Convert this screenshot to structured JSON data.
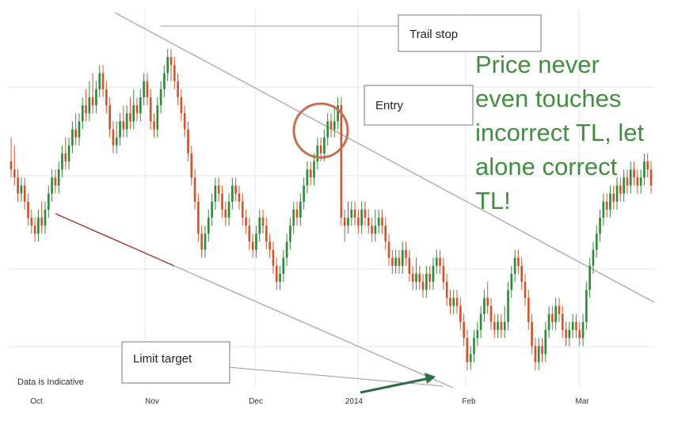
{
  "chart_data": {
    "type": "candlestick",
    "x_ticks": [
      "Oct",
      "Nov",
      "Dec",
      "2014",
      "Feb",
      "Mar"
    ],
    "footnote": "Data is Indicative",
    "grid": true,
    "colors": {
      "up": "#2e8b3a",
      "down": "#d2542c",
      "trendline": "#b0b0b0",
      "limit_line": "#a03a2a",
      "arrow": "#2f6b45",
      "circle": "#c2704e",
      "comment": "#3f8f3f"
    },
    "annotations": {
      "trail_stop": "Trail stop",
      "entry": "Entry",
      "limit_target": "Limit target",
      "comment_lines": [
        "Price never",
        "even touches",
        "incorrect TL, let",
        "alone correct",
        "TL!"
      ]
    },
    "candles": [
      [
        20,
        19,
        23,
        18
      ],
      [
        19,
        18,
        22,
        17
      ],
      [
        18,
        16,
        19,
        15
      ],
      [
        16,
        17,
        18,
        15
      ],
      [
        17,
        15,
        18,
        14
      ],
      [
        15,
        13,
        16,
        12
      ],
      [
        13,
        12,
        14,
        11
      ],
      [
        12,
        11,
        13,
        10
      ],
      [
        11,
        13,
        14,
        10
      ],
      [
        13,
        12,
        15,
        11
      ],
      [
        12,
        14,
        15,
        11
      ],
      [
        14,
        16,
        17,
        13
      ],
      [
        16,
        18,
        19,
        15
      ],
      [
        18,
        17,
        19,
        16
      ],
      [
        17,
        19,
        20,
        16
      ],
      [
        19,
        21,
        22,
        18
      ],
      [
        21,
        20,
        23,
        19
      ],
      [
        20,
        22,
        23,
        19
      ],
      [
        22,
        24,
        25,
        21
      ],
      [
        24,
        23,
        26,
        22
      ],
      [
        23,
        25,
        26,
        22
      ],
      [
        25,
        27,
        28,
        24
      ],
      [
        27,
        26,
        29,
        25
      ],
      [
        26,
        28,
        30,
        25
      ],
      [
        28,
        27,
        31,
        26
      ],
      [
        27,
        29,
        30,
        26
      ],
      [
        29,
        31,
        32,
        28
      ],
      [
        31,
        29,
        32,
        28
      ],
      [
        29,
        27,
        30,
        26
      ],
      [
        27,
        24,
        28,
        23
      ],
      [
        24,
        22,
        25,
        21
      ],
      [
        22,
        23,
        25,
        21
      ],
      [
        23,
        25,
        26,
        22
      ],
      [
        25,
        24,
        27,
        23
      ],
      [
        24,
        26,
        27,
        23
      ],
      [
        26,
        25,
        28,
        24
      ],
      [
        25,
        27,
        29,
        24
      ],
      [
        27,
        26,
        28,
        25
      ],
      [
        26,
        28,
        29,
        25
      ],
      [
        28,
        30,
        31,
        27
      ],
      [
        30,
        28,
        31,
        27
      ],
      [
        28,
        25,
        29,
        24
      ],
      [
        25,
        24,
        26,
        23
      ],
      [
        24,
        27,
        28,
        23
      ],
      [
        27,
        29,
        30,
        26
      ],
      [
        29,
        31,
        32,
        28
      ],
      [
        31,
        33,
        34,
        30
      ],
      [
        33,
        32,
        34,
        30
      ],
      [
        32,
        30,
        33,
        29
      ],
      [
        30,
        28,
        31,
        27
      ],
      [
        28,
        26,
        29,
        25
      ],
      [
        26,
        24,
        27,
        23
      ],
      [
        24,
        21,
        25,
        20
      ],
      [
        21,
        18,
        22,
        17
      ],
      [
        18,
        15,
        19,
        14
      ],
      [
        15,
        11,
        16,
        10
      ],
      [
        11,
        9,
        12,
        8
      ],
      [
        9,
        11,
        12,
        8
      ],
      [
        11,
        13,
        14,
        10
      ],
      [
        13,
        15,
        16,
        12
      ],
      [
        15,
        17,
        18,
        14
      ],
      [
        17,
        16,
        18,
        15
      ],
      [
        16,
        14,
        17,
        13
      ],
      [
        14,
        13,
        15,
        12
      ],
      [
        13,
        15,
        16,
        12
      ],
      [
        15,
        17,
        18,
        14
      ],
      [
        17,
        16,
        18,
        15
      ],
      [
        16,
        15,
        17,
        14
      ],
      [
        15,
        13,
        16,
        12
      ],
      [
        13,
        12,
        14,
        11
      ],
      [
        12,
        10,
        13,
        9
      ],
      [
        10,
        9,
        11,
        8
      ],
      [
        9,
        11,
        12,
        8
      ],
      [
        11,
        13,
        14,
        10
      ],
      [
        13,
        12,
        14,
        11
      ],
      [
        12,
        10,
        13,
        9
      ],
      [
        10,
        9,
        11,
        8
      ],
      [
        9,
        7,
        10,
        6
      ],
      [
        7,
        5,
        8,
        4
      ],
      [
        5,
        6,
        7,
        4
      ],
      [
        6,
        8,
        9,
        5
      ],
      [
        8,
        10,
        11,
        7
      ],
      [
        10,
        12,
        13,
        9
      ],
      [
        12,
        14,
        15,
        11
      ],
      [
        14,
        13,
        15,
        12
      ],
      [
        13,
        15,
        16,
        12
      ],
      [
        15,
        17,
        18,
        14
      ],
      [
        17,
        19,
        20,
        16
      ],
      [
        19,
        18,
        20,
        17
      ],
      [
        18,
        20,
        21,
        17
      ],
      [
        20,
        22,
        23,
        19
      ],
      [
        22,
        21,
        23,
        20
      ],
      [
        21,
        23,
        24,
        20
      ],
      [
        23,
        25,
        26,
        22
      ],
      [
        25,
        24,
        26,
        23
      ],
      [
        24,
        25,
        27,
        23
      ],
      [
        25,
        27,
        28,
        24
      ],
      [
        27,
        13,
        28,
        12
      ],
      [
        13,
        12,
        14,
        10
      ],
      [
        12,
        13,
        15,
        11
      ],
      [
        13,
        14,
        15,
        12
      ],
      [
        14,
        13,
        15,
        12
      ],
      [
        13,
        12,
        14,
        11
      ],
      [
        12,
        14,
        15,
        11
      ],
      [
        14,
        13,
        15,
        12
      ],
      [
        13,
        12,
        14,
        11
      ],
      [
        12,
        11,
        13,
        10
      ],
      [
        11,
        12,
        14,
        10
      ],
      [
        12,
        13,
        14,
        11
      ],
      [
        13,
        12,
        14,
        11
      ],
      [
        12,
        10,
        13,
        9
      ],
      [
        10,
        8,
        11,
        7
      ],
      [
        8,
        7,
        9,
        6
      ],
      [
        7,
        8,
        9,
        6
      ],
      [
        8,
        7,
        9,
        6
      ],
      [
        7,
        9,
        10,
        6
      ],
      [
        9,
        8,
        10,
        7
      ],
      [
        8,
        6,
        9,
        5
      ],
      [
        6,
        5,
        7,
        4
      ],
      [
        5,
        6,
        8,
        4
      ],
      [
        6,
        5,
        7,
        4
      ],
      [
        5,
        4,
        6,
        3
      ],
      [
        4,
        6,
        7,
        3
      ],
      [
        6,
        5,
        7,
        4
      ],
      [
        5,
        7,
        8,
        4
      ],
      [
        7,
        8,
        9,
        6
      ],
      [
        8,
        7,
        9,
        6
      ],
      [
        7,
        5,
        8,
        4
      ],
      [
        5,
        3,
        6,
        2
      ],
      [
        3,
        2,
        4,
        1
      ],
      [
        2,
        3,
        4,
        1
      ],
      [
        3,
        2,
        4,
        1
      ],
      [
        2,
        0,
        3,
        -1
      ],
      [
        0,
        -2,
        1,
        -3
      ],
      [
        -2,
        -5,
        -1,
        -6
      ],
      [
        -5,
        -4,
        -3,
        -6
      ],
      [
        -4,
        -2,
        -1,
        -5
      ],
      [
        -2,
        -1,
        0,
        -3
      ],
      [
        -1,
        1,
        2,
        -2
      ],
      [
        1,
        3,
        4,
        0
      ],
      [
        3,
        2,
        5,
        1
      ],
      [
        2,
        0,
        3,
        -1
      ],
      [
        0,
        -1,
        1,
        -2
      ],
      [
        -1,
        0,
        1,
        -2
      ],
      [
        0,
        -1,
        1,
        -2
      ],
      [
        -1,
        0,
        2,
        -2
      ],
      [
        0,
        4,
        5,
        -1
      ],
      [
        4,
        6,
        7,
        3
      ],
      [
        6,
        8,
        9,
        5
      ],
      [
        8,
        7,
        9,
        6
      ],
      [
        7,
        5,
        8,
        4
      ],
      [
        5,
        3,
        6,
        2
      ],
      [
        3,
        0,
        4,
        -1
      ],
      [
        0,
        -3,
        1,
        -4
      ],
      [
        -3,
        -5,
        -2,
        -6
      ],
      [
        -5,
        -3,
        -2,
        -6
      ],
      [
        -3,
        -4,
        -2,
        -5
      ],
      [
        -4,
        -1,
        0,
        -5
      ],
      [
        -1,
        1,
        2,
        -2
      ],
      [
        1,
        0,
        2,
        -1
      ],
      [
        0,
        2,
        3,
        -1
      ],
      [
        2,
        1,
        3,
        0
      ],
      [
        1,
        -1,
        2,
        -2
      ],
      [
        -1,
        -2,
        0,
        -3
      ],
      [
        -2,
        -1,
        0,
        -3
      ],
      [
        -1,
        0,
        1,
        -2
      ],
      [
        0,
        -1,
        1,
        -2
      ],
      [
        -1,
        -2,
        0,
        -3
      ],
      [
        -2,
        0,
        1,
        -3
      ],
      [
        0,
        4,
        5,
        -1
      ],
      [
        4,
        7,
        8,
        3
      ],
      [
        7,
        9,
        10,
        6
      ],
      [
        9,
        11,
        12,
        8
      ],
      [
        11,
        13,
        14,
        10
      ],
      [
        13,
        15,
        16,
        12
      ],
      [
        15,
        14,
        16,
        13
      ],
      [
        14,
        16,
        17,
        13
      ],
      [
        16,
        15,
        17,
        14
      ],
      [
        15,
        17,
        18,
        14
      ],
      [
        17,
        16,
        18,
        15
      ],
      [
        16,
        18,
        19,
        15
      ],
      [
        18,
        17,
        19,
        16
      ],
      [
        17,
        19,
        20,
        16
      ],
      [
        19,
        18,
        20,
        17
      ],
      [
        18,
        17,
        19,
        16
      ],
      [
        17,
        18,
        19,
        16
      ],
      [
        18,
        20,
        21,
        17
      ],
      [
        20,
        19,
        21,
        18
      ],
      [
        19,
        17,
        20,
        16
      ]
    ]
  }
}
